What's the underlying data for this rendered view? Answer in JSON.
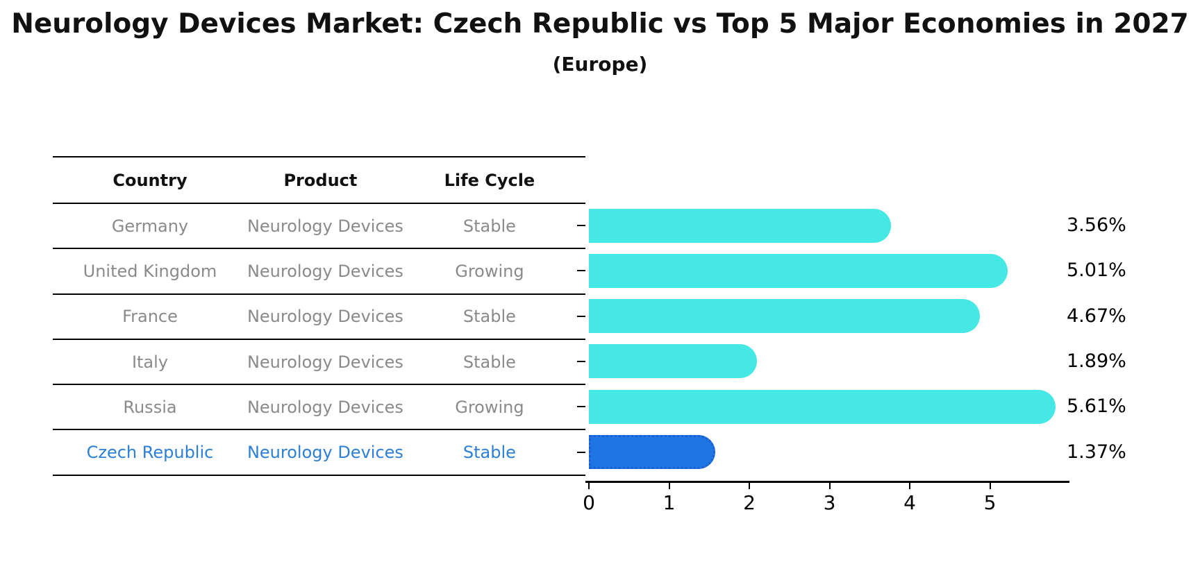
{
  "title": "Neurology Devices Market: Czech Republic vs Top 5 Major Economies in 2027",
  "subtitle": "(Europe)",
  "table": {
    "headers": [
      "Country",
      "Product",
      "Life Cycle"
    ],
    "rows": [
      {
        "country": "Germany",
        "product": "Neurology Devices",
        "life_cycle": "Stable",
        "highlight": false
      },
      {
        "country": "United Kingdom",
        "product": "Neurology Devices",
        "life_cycle": "Growing",
        "highlight": false
      },
      {
        "country": "France",
        "product": "Neurology Devices",
        "life_cycle": "Stable",
        "highlight": false
      },
      {
        "country": "Italy",
        "product": "Neurology Devices",
        "life_cycle": "Stable",
        "highlight": false
      },
      {
        "country": "Russia",
        "product": "Neurology Devices",
        "life_cycle": "Growing",
        "highlight": false
      },
      {
        "country": "Czech Republic",
        "product": "Neurology Devices",
        "life_cycle": "Stable",
        "highlight": true
      }
    ]
  },
  "chart_data": {
    "type": "bar",
    "orientation": "horizontal",
    "title": "Neurology Devices Market: Czech Republic vs Top 5 Major Economies in 2027 (Europe)",
    "categories": [
      "Germany",
      "United Kingdom",
      "France",
      "Italy",
      "Russia",
      "Czech Republic"
    ],
    "values": [
      3.56,
      5.01,
      4.67,
      1.89,
      5.61,
      1.37
    ],
    "value_labels": [
      "3.56%",
      "5.01%",
      "4.67%",
      "1.89%",
      "5.61%",
      "1.37%"
    ],
    "x_ticks": [
      "0",
      "1",
      "2",
      "3",
      "4",
      "5"
    ],
    "xlim": [
      0,
      5.9
    ],
    "xlabel": "",
    "ylabel": "",
    "grid": false,
    "legend": false,
    "highlight_index": 5,
    "colors": {
      "bar_default": "#45E8E4",
      "bar_highlight": "#2075E4",
      "bar_highlight_border": "#1A5FD0",
      "highlight_text": "#2B7FD6",
      "table_text": "#8A8A8A",
      "header_text": "#000000",
      "axis": "#000000",
      "value_label": "#000000",
      "background": "#FFFFFF"
    }
  }
}
